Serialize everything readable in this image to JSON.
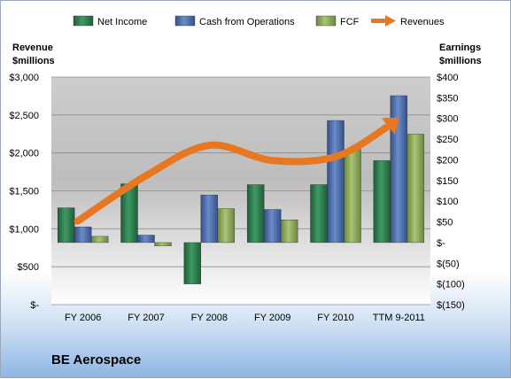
{
  "company": "BE Aerospace",
  "chart_data": {
    "type": "bar",
    "categories": [
      "FY 2006",
      "FY 2007",
      "FY 2008",
      "FY 2009",
      "FY 2010",
      "TTM 9-2011"
    ],
    "series": [
      {
        "name": "Net Income",
        "axis": "right",
        "color": "#2e7d4f",
        "values": [
          84,
          142,
          -100,
          140,
          140,
          198
        ]
      },
      {
        "name": "Cash from Operations",
        "axis": "right",
        "color": "#4f6fae",
        "values": [
          38,
          18,
          115,
          80,
          295,
          355
        ]
      },
      {
        "name": "FCF",
        "axis": "right",
        "color": "#8faa5a",
        "values": [
          15,
          -8,
          82,
          55,
          225,
          262
        ]
      }
    ],
    "line_series": {
      "name": "Revenues",
      "axis": "left",
      "style": "arrow",
      "color": "#e87722",
      "values": [
        1100,
        1700,
        2100,
        1900,
        1950,
        2350
      ]
    },
    "left_axis": {
      "label": [
        "Revenue",
        "$millions"
      ],
      "min": 0,
      "max": 3000,
      "ticks": [
        "$3,000",
        "$2,500",
        "$2,000",
        "$1,500",
        "$1,000",
        "$500",
        "$-"
      ]
    },
    "right_axis": {
      "label": [
        "Earnings",
        "$millions"
      ],
      "min": -150,
      "max": 400,
      "ticks": [
        "$400",
        "$350",
        "$300",
        "$250",
        "$200",
        "$150",
        "$100",
        "$50",
        "$-",
        "$(50)",
        "$(100)",
        "$(150)"
      ]
    },
    "legend_position": "top",
    "grid": true
  }
}
